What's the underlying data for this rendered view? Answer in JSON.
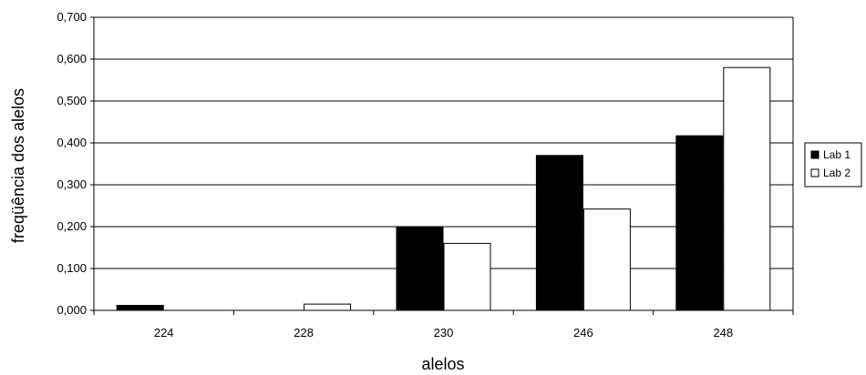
{
  "chart_data": {
    "type": "bar",
    "xlabel": "alelos",
    "ylabel": "freqüência dos  alelos",
    "categories": [
      "224",
      "228",
      "230",
      "246",
      "248"
    ],
    "series": [
      {
        "name": "Lab 1",
        "color": "#000000",
        "values": [
          0.012,
          0.0,
          0.2,
          0.37,
          0.417
        ]
      },
      {
        "name": "Lab 2",
        "color": "#ffffff",
        "values": [
          0.0,
          0.015,
          0.16,
          0.242,
          0.58
        ]
      }
    ],
    "ylim": [
      0,
      0.7
    ],
    "yticks": [
      "0,000",
      "0,100",
      "0,200",
      "0,300",
      "0,400",
      "0,500",
      "0,600",
      "0,700"
    ],
    "grid": true,
    "legend_position": "right"
  }
}
